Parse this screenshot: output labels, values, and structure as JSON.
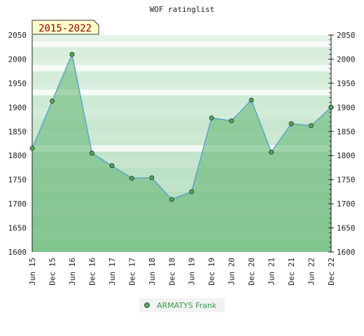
{
  "chart_data": {
    "type": "area",
    "title": "WOF ratinglist",
    "badge": "2015-2022",
    "x": [
      "Jun 15",
      "Dec 15",
      "Jun 16",
      "Dec 16",
      "Jun 17",
      "Dec 17",
      "Jun 18",
      "Dec 18",
      "Jun 19",
      "Dec 19",
      "Jun 20",
      "Dec 20",
      "Jun 21",
      "Dec 21",
      "Jun 22",
      "Dec 22"
    ],
    "series": [
      {
        "name": "ARMATYS Frank",
        "values": [
          1815,
          1913,
          2010,
          1805,
          1779,
          1753,
          1754,
          1709,
          1725,
          1878,
          1872,
          1915,
          1807,
          1866,
          1862,
          1900
        ]
      }
    ],
    "ylim": [
      1600,
      2050
    ],
    "yticks": [
      1600,
      1650,
      1700,
      1750,
      1800,
      1850,
      1900,
      1950,
      2000,
      2050
    ],
    "grid": true,
    "legend_position": "bottom-center",
    "colors": {
      "line": "#5aa6c8",
      "fill": "#5fb56f",
      "marker": "#4caf50",
      "badge_bg": "#ffffcc",
      "badge_text": "#8b0000"
    }
  }
}
